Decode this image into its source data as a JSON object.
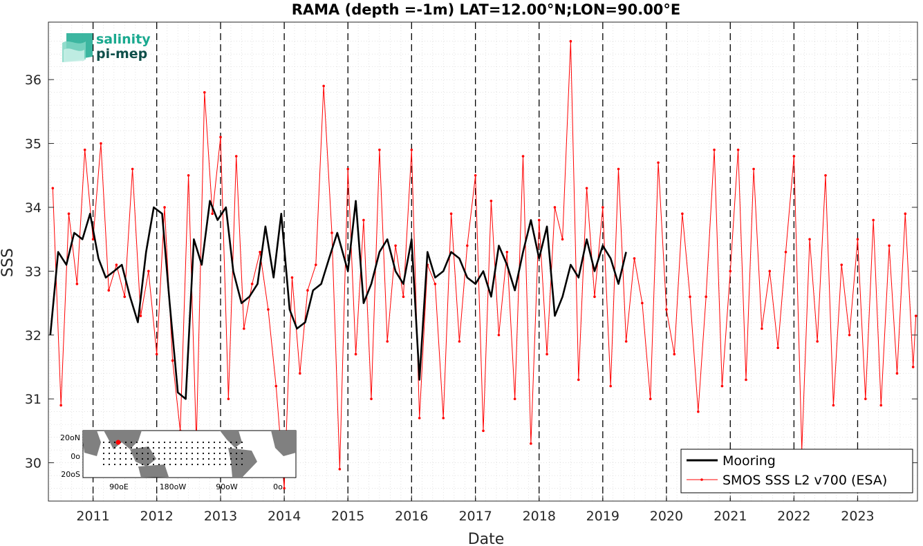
{
  "chart_data": {
    "type": "line",
    "title": "RAMA (depth =-1m) LAT=12.00°N;LON=90.00°E",
    "xlabel": "Date",
    "ylabel": "SSS",
    "xlim": [
      "2010-04-20",
      "2023-12-10"
    ],
    "ylim": [
      29.4,
      36.9
    ],
    "x_ticks": [
      "2011",
      "2012",
      "2013",
      "2014",
      "2015",
      "2016",
      "2017",
      "2018",
      "2019",
      "2020",
      "2021",
      "2022",
      "2023"
    ],
    "y_ticks": [
      "30",
      "31",
      "32",
      "33",
      "34",
      "35",
      "36"
    ],
    "vertical_dashed_lines_at_year_starts": true,
    "grid": "minor dotted",
    "legend_position": "bottom-right",
    "series": [
      {
        "name": "Mooring",
        "color": "#000000",
        "style": "thick line",
        "x": [
          "2010-05-01",
          "2010-06-15",
          "2010-08-01",
          "2010-09-15",
          "2010-11-01",
          "2010-12-15",
          "2011-02-01",
          "2011-03-15",
          "2011-05-01",
          "2011-06-15",
          "2011-08-01",
          "2011-09-15",
          "2011-11-01",
          "2011-12-15",
          "2012-02-01",
          "2012-03-15",
          "2012-05-01",
          "2012-06-15",
          "2012-08-01",
          "2012-09-15",
          "2012-11-01",
          "2012-12-15",
          "2013-02-01",
          "2013-03-15",
          "2013-05-01",
          "2013-06-15",
          "2013-08-01",
          "2013-09-15",
          "2013-11-01",
          "2013-12-15",
          "2014-02-01",
          "2014-03-15",
          "2014-05-01",
          "2014-06-15",
          "2014-08-01",
          "2014-09-15",
          "2014-11-01",
          "2015-01-01",
          "2015-02-15",
          "2015-04-01",
          "2015-05-15",
          "2015-07-01",
          "2015-08-15",
          "2015-10-01",
          "2015-11-15",
          "2016-01-01",
          "2016-02-15",
          "2016-04-01",
          "2016-05-15",
          "2016-07-01",
          "2016-08-15",
          "2016-10-01",
          "2016-11-15",
          "2017-01-01",
          "2017-02-15",
          "2017-04-01",
          "2017-05-15",
          "2017-07-01",
          "2017-08-15",
          "2017-10-01",
          "2017-11-15",
          "2018-01-01",
          "2018-02-15",
          "2018-04-01",
          "2018-05-15",
          "2018-07-01",
          "2018-08-15",
          "2018-10-01",
          "2018-11-15",
          "2019-01-01",
          "2019-02-15",
          "2019-04-01",
          "2019-05-15"
        ],
        "values": [
          32.0,
          33.3,
          33.1,
          33.6,
          33.5,
          33.9,
          33.2,
          32.9,
          33.0,
          33.1,
          32.6,
          32.2,
          33.3,
          34.0,
          33.9,
          32.5,
          31.1,
          31.0,
          33.5,
          33.1,
          34.1,
          33.8,
          34.0,
          33.0,
          32.5,
          32.6,
          32.8,
          33.7,
          32.9,
          33.9,
          32.4,
          32.1,
          32.2,
          32.7,
          32.8,
          33.2,
          33.6,
          33.0,
          34.1,
          32.5,
          32.8,
          33.3,
          33.5,
          33.0,
          32.8,
          33.5,
          31.3,
          33.3,
          32.9,
          33.0,
          33.3,
          33.2,
          32.9,
          32.8,
          33.0,
          32.6,
          33.4,
          33.1,
          32.7,
          33.3,
          33.8,
          33.2,
          33.7,
          32.3,
          32.6,
          33.1,
          32.9,
          33.5,
          33.0,
          33.4,
          33.2,
          32.8,
          33.3
        ]
      },
      {
        "name": "SMOS SSS L2 v700 (ESA)",
        "color": "#ff0000",
        "style": "thin line with dot markers",
        "x": [
          "2010-05-15",
          "2010-07-01",
          "2010-08-15",
          "2010-10-01",
          "2010-11-15",
          "2011-01-01",
          "2011-02-15",
          "2011-04-01",
          "2011-05-15",
          "2011-07-01",
          "2011-08-15",
          "2011-10-01",
          "2011-11-15",
          "2012-01-01",
          "2012-02-15",
          "2012-04-01",
          "2012-05-15",
          "2012-07-01",
          "2012-08-15",
          "2012-10-01",
          "2012-11-15",
          "2013-01-01",
          "2013-02-15",
          "2013-04-01",
          "2013-05-15",
          "2013-07-01",
          "2013-08-15",
          "2013-10-01",
          "2013-11-15",
          "2014-01-01",
          "2014-02-15",
          "2014-04-01",
          "2014-05-15",
          "2014-07-01",
          "2014-08-15",
          "2014-10-01",
          "2014-11-15",
          "2015-01-01",
          "2015-02-15",
          "2015-04-01",
          "2015-05-15",
          "2015-07-01",
          "2015-08-15",
          "2015-10-01",
          "2015-11-15",
          "2016-01-01",
          "2016-02-15",
          "2016-04-01",
          "2016-05-15",
          "2016-07-01",
          "2016-08-15",
          "2016-10-01",
          "2016-11-15",
          "2017-01-01",
          "2017-02-15",
          "2017-04-01",
          "2017-05-15",
          "2017-07-01",
          "2017-08-15",
          "2017-10-01",
          "2017-11-15",
          "2018-01-01",
          "2018-02-15",
          "2018-04-01",
          "2018-05-15",
          "2018-07-01",
          "2018-08-15",
          "2018-10-01",
          "2018-11-15",
          "2019-01-01",
          "2019-02-15",
          "2019-04-01",
          "2019-05-15",
          "2019-07-01",
          "2019-08-15",
          "2019-10-01",
          "2019-11-15",
          "2020-01-01",
          "2020-02-15",
          "2020-04-01",
          "2020-05-15",
          "2020-07-01",
          "2020-08-15",
          "2020-10-01",
          "2020-11-15",
          "2021-01-01",
          "2021-02-15",
          "2021-04-01",
          "2021-05-15",
          "2021-07-01",
          "2021-08-15",
          "2021-10-01",
          "2021-11-15",
          "2022-01-01",
          "2022-02-15",
          "2022-04-01",
          "2022-05-15",
          "2022-07-01",
          "2022-08-15",
          "2022-10-01",
          "2022-11-15",
          "2023-01-01",
          "2023-02-15",
          "2023-04-01",
          "2023-05-15",
          "2023-07-01",
          "2023-08-15",
          "2023-10-01",
          "2023-11-15",
          "2023-12-01"
        ],
        "values": [
          34.3,
          30.9,
          33.9,
          32.8,
          34.9,
          33.5,
          35.0,
          32.7,
          33.1,
          32.6,
          34.6,
          32.3,
          33.0,
          31.7,
          34.0,
          31.6,
          30.5,
          34.5,
          30.3,
          35.8,
          33.9,
          35.1,
          31.0,
          34.8,
          32.1,
          32.8,
          33.3,
          32.4,
          31.2,
          29.6,
          32.9,
          31.4,
          32.7,
          33.1,
          35.9,
          33.6,
          29.9,
          34.6,
          31.7,
          33.8,
          31.0,
          34.9,
          31.9,
          33.4,
          32.6,
          34.9,
          30.7,
          33.1,
          32.8,
          30.7,
          33.9,
          31.9,
          33.4,
          34.5,
          30.5,
          34.1,
          32.0,
          33.3,
          31.0,
          34.8,
          30.3,
          33.8,
          31.7,
          34.0,
          33.5,
          36.6,
          31.3,
          34.3,
          32.6,
          34.0,
          31.2,
          34.6,
          31.9,
          33.2,
          32.5,
          31.0,
          34.7,
          32.4,
          31.7,
          33.9,
          32.6,
          30.8,
          32.6,
          34.9,
          31.2,
          33.0,
          34.9,
          31.3,
          34.6,
          32.1,
          33.0,
          31.8,
          33.3,
          34.8,
          30.2,
          33.5,
          31.9,
          34.5,
          30.9,
          33.1,
          32.0,
          33.5,
          31.0,
          33.8,
          30.9,
          33.4,
          31.4,
          33.9,
          31.5,
          32.3
        ]
      }
    ]
  },
  "logo": {
    "line1": "salinity",
    "line2": "pi-mep",
    "color_primary": "#1aa98f",
    "color_dark": "#0f4f4a"
  },
  "inset_map": {
    "lat_labels": [
      "20",
      "0",
      "20"
    ],
    "lat_suffix": [
      "N",
      "",
      "S"
    ],
    "lon_labels": [
      "90",
      "180",
      "90",
      "0"
    ],
    "lon_suffix": [
      "E",
      "W",
      "W",
      ""
    ],
    "degree_mark": "o",
    "land_color": "#808080",
    "site_color": "#ff0000"
  },
  "legend": {
    "items": [
      "Mooring",
      "SMOS SSS L2 v700 (ESA)"
    ]
  }
}
